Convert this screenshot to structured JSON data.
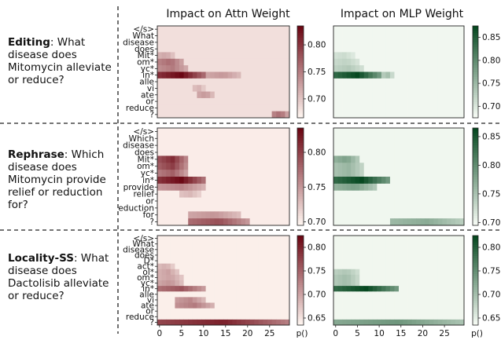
{
  "columns": [
    {
      "title": "Impact on Attn Weight",
      "cmap": "reds",
      "color_low": "#fff5f0",
      "color_high": "#67000d"
    },
    {
      "title": "Impact on MLP Weight",
      "cmap": "greens",
      "color_low": "#f7fcf5",
      "color_high": "#00441b"
    }
  ],
  "rows": [
    {
      "label_bold": "Editing",
      "label_text": ": What disease does Mitomycin alleviate or reduce?",
      "tokens": [
        "</s>",
        "What",
        "disease",
        "does",
        "Mit*",
        "om*",
        "yc*",
        "in*",
        "alle",
        "vi",
        "ate",
        "or",
        "reduce",
        "?"
      ],
      "attn_colorbar": {
        "ticks": [
          "0.80",
          "0.75",
          "0.70"
        ],
        "min": 0.665,
        "max": 0.835,
        "tick_values": [
          0.8,
          0.75,
          0.7
        ]
      },
      "mlp_colorbar": {
        "ticks": [
          "0.85",
          "0.80",
          "0.75",
          "0.70"
        ],
        "min": 0.675,
        "max": 0.875,
        "tick_values": [
          0.85,
          0.8,
          0.75,
          0.7
        ]
      },
      "colorbar_label": ""
    },
    {
      "label_bold": "Rephrase",
      "label_text": ": Which disease does Mitomycin provide relief or reduction for?",
      "tokens": [
        "</s>",
        "Which",
        "disease",
        "does",
        "Mit*",
        "om*",
        "yc*",
        "in*",
        "provide",
        "relief",
        "or",
        "eduction",
        "for",
        "?"
      ],
      "attn_colorbar": {
        "ticks": [
          "0.80",
          "0.75",
          "0.70"
        ],
        "min": 0.695,
        "max": 0.835,
        "tick_values": [
          0.8,
          0.75,
          0.7
        ]
      },
      "mlp_colorbar": {
        "ticks": [
          "0.85",
          "0.80",
          "0.75",
          "0.70"
        ],
        "min": 0.695,
        "max": 0.865,
        "tick_values": [
          0.85,
          0.8,
          0.75,
          0.7
        ]
      },
      "colorbar_label": ""
    },
    {
      "label_bold": "Locality-SS",
      "label_text": ": What disease does Dactolisib alleviate or reduce?",
      "tokens": [
        "</s>",
        "What",
        "disease",
        "does",
        "D*",
        "act*",
        "ol*",
        "om*",
        "yc*",
        "in*",
        "alle",
        "vi",
        "ate",
        "or",
        "reduce",
        "?"
      ],
      "attn_colorbar": {
        "ticks": [
          "0.80",
          "0.75",
          "0.70",
          "0.65"
        ],
        "min": 0.635,
        "max": 0.825,
        "tick_values": [
          0.8,
          0.75,
          0.7,
          0.65
        ]
      },
      "mlp_colorbar": {
        "ticks": [
          "0.80",
          "0.75",
          "0.70",
          "0.65"
        ],
        "min": 0.635,
        "max": 0.825,
        "tick_values": [
          0.8,
          0.75,
          0.7,
          0.65
        ]
      },
      "colorbar_label": "p()"
    }
  ],
  "chart_data": [
    {
      "type": "heatmap",
      "title": "Impact on Attn Weight",
      "row": "Editing",
      "xlabel": "",
      "ylabel": "",
      "x_ticks": [
        0,
        5,
        10,
        15,
        20,
        25
      ],
      "n_cols": 30,
      "y_tokens": [
        "</s>",
        "What",
        "disease",
        "does",
        "Mit*",
        "om*",
        "yc*",
        "in*",
        "alle",
        "vi",
        "ate",
        "or",
        "reduce",
        "?"
      ],
      "baseline": 0.68,
      "hotspots": [
        {
          "row": 4,
          "cols": [
            0,
            3
          ],
          "value": 0.72
        },
        {
          "row": 5,
          "cols": [
            0,
            5
          ],
          "value": 0.76
        },
        {
          "row": 6,
          "cols": [
            0,
            6
          ],
          "value": 0.75
        },
        {
          "row": 7,
          "cols": [
            0,
            10
          ],
          "value": 0.83
        },
        {
          "row": 7,
          "cols": [
            11,
            18
          ],
          "value": 0.73
        },
        {
          "row": 9,
          "cols": [
            8,
            10
          ],
          "value": 0.71
        },
        {
          "row": 10,
          "cols": [
            9,
            12
          ],
          "value": 0.73
        },
        {
          "row": 13,
          "cols": [
            26,
            29
          ],
          "value": 0.76
        }
      ]
    },
    {
      "type": "heatmap",
      "title": "Impact on MLP Weight",
      "row": "Editing",
      "x_ticks": [
        0,
        5,
        10,
        15,
        20,
        25
      ],
      "n_cols": 30,
      "y_tokens": [
        "</s>",
        "What",
        "disease",
        "does",
        "Mit*",
        "om*",
        "yc*",
        "in*",
        "alle",
        "vi",
        "ate",
        "or",
        "reduce",
        "?"
      ],
      "baseline": 0.68,
      "hotspots": [
        {
          "row": 4,
          "cols": [
            0,
            4
          ],
          "value": 0.71
        },
        {
          "row": 5,
          "cols": [
            0,
            5
          ],
          "value": 0.72
        },
        {
          "row": 6,
          "cols": [
            0,
            6
          ],
          "value": 0.73
        },
        {
          "row": 7,
          "cols": [
            0,
            10
          ],
          "value": 0.87
        },
        {
          "row": 7,
          "cols": [
            11,
            13
          ],
          "value": 0.74
        }
      ]
    },
    {
      "type": "heatmap",
      "title": "Impact on Attn Weight",
      "row": "Rephrase",
      "x_ticks": [
        0,
        5,
        10,
        15,
        20,
        25
      ],
      "n_cols": 30,
      "y_tokens": [
        "</s>",
        "Which",
        "disease",
        "does",
        "Mit*",
        "om*",
        "yc*",
        "in*",
        "provide",
        "relief",
        "or",
        "eduction",
        "for",
        "?"
      ],
      "baseline": 0.7,
      "hotspots": [
        {
          "row": 4,
          "cols": [
            0,
            6
          ],
          "value": 0.81
        },
        {
          "row": 5,
          "cols": [
            0,
            6
          ],
          "value": 0.8
        },
        {
          "row": 6,
          "cols": [
            0,
            6
          ],
          "value": 0.78
        },
        {
          "row": 7,
          "cols": [
            0,
            10
          ],
          "value": 0.83
        },
        {
          "row": 8,
          "cols": [
            0,
            10
          ],
          "value": 0.76
        },
        {
          "row": 9,
          "cols": [
            5,
            9
          ],
          "value": 0.73
        },
        {
          "row": 12,
          "cols": [
            7,
            18
          ],
          "value": 0.75
        },
        {
          "row": 13,
          "cols": [
            7,
            20
          ],
          "value": 0.79
        }
      ]
    },
    {
      "type": "heatmap",
      "title": "Impact on MLP Weight",
      "row": "Rephrase",
      "x_ticks": [
        0,
        5,
        10,
        15,
        20,
        25
      ],
      "n_cols": 30,
      "y_tokens": [
        "</s>",
        "Which",
        "disease",
        "does",
        "Mit*",
        "om*",
        "yc*",
        "in*",
        "provide",
        "relief",
        "or",
        "eduction",
        "for",
        "?"
      ],
      "baseline": 0.7,
      "hotspots": [
        {
          "row": 4,
          "cols": [
            0,
            5
          ],
          "value": 0.78
        },
        {
          "row": 5,
          "cols": [
            0,
            6
          ],
          "value": 0.76
        },
        {
          "row": 6,
          "cols": [
            0,
            6
          ],
          "value": 0.76
        },
        {
          "row": 7,
          "cols": [
            0,
            12
          ],
          "value": 0.86
        },
        {
          "row": 8,
          "cols": [
            0,
            9
          ],
          "value": 0.78
        },
        {
          "row": 13,
          "cols": [
            13,
            29
          ],
          "value": 0.77
        }
      ]
    },
    {
      "type": "heatmap",
      "title": "Impact on Attn Weight",
      "row": "Locality-SS",
      "x_ticks": [
        0,
        5,
        10,
        15,
        20,
        25
      ],
      "n_cols": 30,
      "y_tokens": [
        "</s>",
        "What",
        "disease",
        "does",
        "D*",
        "act*",
        "ol*",
        "om*",
        "yc*",
        "in*",
        "alle",
        "vi",
        "ate",
        "or",
        "reduce",
        "?"
      ],
      "baseline": 0.64,
      "hotspots": [
        {
          "row": 5,
          "cols": [
            0,
            3
          ],
          "value": 0.69
        },
        {
          "row": 6,
          "cols": [
            0,
            4
          ],
          "value": 0.7
        },
        {
          "row": 7,
          "cols": [
            0,
            5
          ],
          "value": 0.7
        },
        {
          "row": 8,
          "cols": [
            0,
            5
          ],
          "value": 0.71
        },
        {
          "row": 9,
          "cols": [
            0,
            10
          ],
          "value": 0.76
        },
        {
          "row": 11,
          "cols": [
            4,
            10
          ],
          "value": 0.72
        },
        {
          "row": 12,
          "cols": [
            4,
            12
          ],
          "value": 0.73
        },
        {
          "row": 15,
          "cols": [
            0,
            29
          ],
          "value": 0.8
        }
      ]
    },
    {
      "type": "heatmap",
      "title": "Impact on MLP Weight",
      "row": "Locality-SS",
      "x_ticks": [
        0,
        5,
        10,
        15,
        20,
        25
      ],
      "n_cols": 30,
      "y_tokens": [
        "</s>",
        "What",
        "disease",
        "does",
        "D*",
        "act*",
        "ol*",
        "om*",
        "yc*",
        "in*",
        "alle",
        "vi",
        "ate",
        "or",
        "reduce",
        "?"
      ],
      "baseline": 0.64,
      "hotspots": [
        {
          "row": 6,
          "cols": [
            0,
            5
          ],
          "value": 0.69
        },
        {
          "row": 7,
          "cols": [
            0,
            5
          ],
          "value": 0.7
        },
        {
          "row": 8,
          "cols": [
            0,
            5
          ],
          "value": 0.7
        },
        {
          "row": 9,
          "cols": [
            0,
            14
          ],
          "value": 0.82
        },
        {
          "row": 15,
          "cols": [
            0,
            29
          ],
          "value": 0.74
        }
      ]
    }
  ]
}
